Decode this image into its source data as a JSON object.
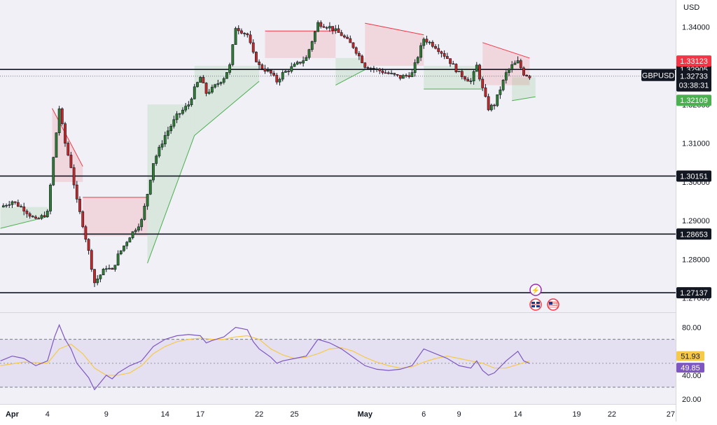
{
  "header": {
    "currency": "USD"
  },
  "chart_data": {
    "type": "candlestick",
    "symbol": "GBPUSD",
    "last_price": "1.32733",
    "countdown": "03:38:31",
    "y_ticks": [
      "1.34000",
      "1.33000",
      "1.32000",
      "1.31000",
      "1.30000",
      "1.29000",
      "1.28000",
      "1.27000"
    ],
    "y_range": [
      1.2665,
      1.347
    ],
    "x_ticks": [
      {
        "label": "Apr",
        "day": 1
      },
      {
        "label": "4",
        "day": 4
      },
      {
        "label": "9",
        "day": 9
      },
      {
        "label": "14",
        "day": 14
      },
      {
        "label": "17",
        "day": 17
      },
      {
        "label": "22",
        "day": 22
      },
      {
        "label": "25",
        "day": 25
      },
      {
        "label": "May",
        "day": 31
      },
      {
        "label": "6",
        "day": 36
      },
      {
        "label": "9",
        "day": 39
      },
      {
        "label": "14",
        "day": 44
      },
      {
        "label": "19",
        "day": 49
      },
      {
        "label": "22",
        "day": 52
      },
      {
        "label": "27",
        "day": 57
      }
    ],
    "horizontal_levels": [
      {
        "value": 1.32905,
        "label": "1.32905"
      },
      {
        "value": 1.30151,
        "label": "1.30151"
      },
      {
        "value": 1.28653,
        "label": "1.28653"
      },
      {
        "value": 1.27137,
        "label": "1.27137"
      }
    ],
    "price_tags": [
      {
        "label": "1.33123",
        "value": 1.33123,
        "color": "#f23645"
      },
      {
        "label": "1.32109",
        "value": 1.32109,
        "color": "#4caf50"
      }
    ],
    "close_path": [
      [
        0,
        1.2935
      ],
      [
        1,
        1.295
      ],
      [
        2,
        1.293
      ],
      [
        3,
        1.29
      ],
      [
        4,
        1.292
      ],
      [
        4.6,
        1.309
      ],
      [
        5,
        1.319
      ],
      [
        5.5,
        1.31
      ],
      [
        6,
        1.304
      ],
      [
        6.5,
        1.295
      ],
      [
        7,
        1.289
      ],
      [
        7.5,
        1.282
      ],
      [
        8,
        1.274
      ],
      [
        8.5,
        1.276
      ],
      [
        9,
        1.278
      ],
      [
        9.5,
        1.277
      ],
      [
        10,
        1.281
      ],
      [
        11,
        1.286
      ],
      [
        12,
        1.29
      ],
      [
        12.5,
        1.297
      ],
      [
        13,
        1.305
      ],
      [
        14,
        1.312
      ],
      [
        15,
        1.317
      ],
      [
        16,
        1.32
      ],
      [
        16.5,
        1.324
      ],
      [
        17,
        1.327
      ],
      [
        17.5,
        1.323
      ],
      [
        18,
        1.324
      ],
      [
        19,
        1.327
      ],
      [
        19.5,
        1.33
      ],
      [
        20,
        1.34
      ],
      [
        20.5,
        1.339
      ],
      [
        21,
        1.338
      ],
      [
        21.5,
        1.333
      ],
      [
        22,
        1.33
      ],
      [
        23,
        1.328
      ],
      [
        23.5,
        1.326
      ],
      [
        24,
        1.328
      ],
      [
        25,
        1.33
      ],
      [
        26,
        1.332
      ],
      [
        27,
        1.341
      ],
      [
        28,
        1.34
      ],
      [
        29,
        1.338
      ],
      [
        30,
        1.335
      ],
      [
        31,
        1.33
      ],
      [
        32,
        1.329
      ],
      [
        33,
        1.328
      ],
      [
        34,
        1.327
      ],
      [
        35,
        1.328
      ],
      [
        36,
        1.337
      ],
      [
        37,
        1.335
      ],
      [
        38,
        1.332
      ],
      [
        39,
        1.328
      ],
      [
        40,
        1.326
      ],
      [
        40.5,
        1.33
      ],
      [
        41,
        1.324
      ],
      [
        41.5,
        1.319
      ],
      [
        42,
        1.32
      ],
      [
        43,
        1.328
      ],
      [
        43.5,
        1.33
      ],
      [
        44,
        1.331
      ],
      [
        44.5,
        1.328
      ],
      [
        45,
        1.3273
      ]
    ],
    "supertrend": [
      {
        "type": "up",
        "from": 0,
        "to": 4,
        "start": 1.288,
        "end": 1.291,
        "ref": 1.2935
      },
      {
        "type": "down",
        "from": 4.4,
        "to": 7,
        "start": 1.319,
        "end": 1.304,
        "ref": 1.3
      },
      {
        "type": "down",
        "from": 7,
        "to": 12.5,
        "start": 1.296,
        "end": 1.296,
        "ref": 1.286
      },
      {
        "type": "up",
        "from": 12.5,
        "to": 16.5,
        "start": 1.279,
        "end": 1.312,
        "ref": 1.32
      },
      {
        "type": "up",
        "from": 16.5,
        "to": 22,
        "start": 1.312,
        "end": 1.326,
        "ref": 1.33
      },
      {
        "type": "down",
        "from": 22.5,
        "to": 28.5,
        "start": 1.339,
        "end": 1.339,
        "ref": 1.332
      },
      {
        "type": "up",
        "from": 28.5,
        "to": 31,
        "start": 1.325,
        "end": 1.329,
        "ref": 1.332
      },
      {
        "type": "down",
        "from": 31,
        "to": 36,
        "start": 1.341,
        "end": 1.338,
        "ref": 1.33
      },
      {
        "type": "up",
        "from": 36,
        "to": 41,
        "start": 1.324,
        "end": 1.324,
        "ref": 1.33
      },
      {
        "type": "down",
        "from": 41,
        "to": 45,
        "start": 1.336,
        "end": 1.332,
        "ref": 1.325
      },
      {
        "type": "up",
        "from": 43.5,
        "to": 45.5,
        "start": 1.321,
        "end": 1.322,
        "ref": 1.327
      }
    ],
    "rsi": {
      "ticks": [
        "80.00",
        "40.00",
        "20.00"
      ],
      "band": [
        30,
        70
      ],
      "mid": 50,
      "range": [
        16,
        92
      ],
      "value": "49.85",
      "ma_value": "51.93",
      "line_color": "#7e57c2",
      "ma_color": "#f7c948",
      "path": [
        [
          0,
          52
        ],
        [
          1,
          56
        ],
        [
          2,
          54
        ],
        [
          3,
          48
        ],
        [
          4,
          52
        ],
        [
          4.6,
          72
        ],
        [
          5,
          82
        ],
        [
          5.5,
          70
        ],
        [
          6,
          62
        ],
        [
          6.5,
          50
        ],
        [
          7,
          44
        ],
        [
          7.5,
          38
        ],
        [
          8,
          28
        ],
        [
          8.5,
          34
        ],
        [
          9,
          40
        ],
        [
          9.5,
          37
        ],
        [
          10,
          42
        ],
        [
          11,
          48
        ],
        [
          12,
          52
        ],
        [
          12.5,
          58
        ],
        [
          13,
          64
        ],
        [
          14,
          70
        ],
        [
          15,
          73
        ],
        [
          16,
          74
        ],
        [
          17,
          73
        ],
        [
          17.5,
          67
        ],
        [
          18,
          69
        ],
        [
          19,
          72
        ],
        [
          20,
          80
        ],
        [
          21,
          78
        ],
        [
          21.5,
          68
        ],
        [
          22,
          62
        ],
        [
          23,
          55
        ],
        [
          23.5,
          50
        ],
        [
          24,
          52
        ],
        [
          25,
          54
        ],
        [
          26,
          56
        ],
        [
          27,
          70
        ],
        [
          28,
          67
        ],
        [
          29,
          62
        ],
        [
          30,
          55
        ],
        [
          31,
          48
        ],
        [
          32,
          45
        ],
        [
          33,
          44
        ],
        [
          34,
          45
        ],
        [
          35,
          48
        ],
        [
          36,
          62
        ],
        [
          37,
          58
        ],
        [
          38,
          54
        ],
        [
          39,
          48
        ],
        [
          40,
          46
        ],
        [
          40.5,
          52
        ],
        [
          41,
          44
        ],
        [
          41.5,
          40
        ],
        [
          42,
          42
        ],
        [
          43,
          52
        ],
        [
          43.5,
          56
        ],
        [
          44,
          60
        ],
        [
          44.5,
          52
        ],
        [
          45,
          49.85
        ]
      ],
      "ma_path": [
        [
          0,
          48
        ],
        [
          2,
          51
        ],
        [
          4,
          50
        ],
        [
          5,
          62
        ],
        [
          6,
          66
        ],
        [
          7,
          58
        ],
        [
          8,
          46
        ],
        [
          9,
          40
        ],
        [
          10,
          40
        ],
        [
          11,
          42
        ],
        [
          12,
          48
        ],
        [
          13,
          58
        ],
        [
          14,
          64
        ],
        [
          15,
          68
        ],
        [
          16,
          70
        ],
        [
          17,
          71
        ],
        [
          18,
          70
        ],
        [
          19,
          70
        ],
        [
          20,
          72
        ],
        [
          21,
          73
        ],
        [
          22,
          70
        ],
        [
          23,
          62
        ],
        [
          24,
          57
        ],
        [
          25,
          54
        ],
        [
          26,
          55
        ],
        [
          27,
          58
        ],
        [
          28,
          62
        ],
        [
          29,
          63
        ],
        [
          30,
          60
        ],
        [
          31,
          55
        ],
        [
          32,
          51
        ],
        [
          33,
          48
        ],
        [
          34,
          46
        ],
        [
          35,
          47
        ],
        [
          36,
          51
        ],
        [
          37,
          54
        ],
        [
          38,
          56
        ],
        [
          39,
          54
        ],
        [
          40,
          52
        ],
        [
          41,
          50
        ],
        [
          42,
          46
        ],
        [
          43,
          46
        ],
        [
          44,
          49
        ],
        [
          45,
          51.93
        ]
      ]
    }
  }
}
